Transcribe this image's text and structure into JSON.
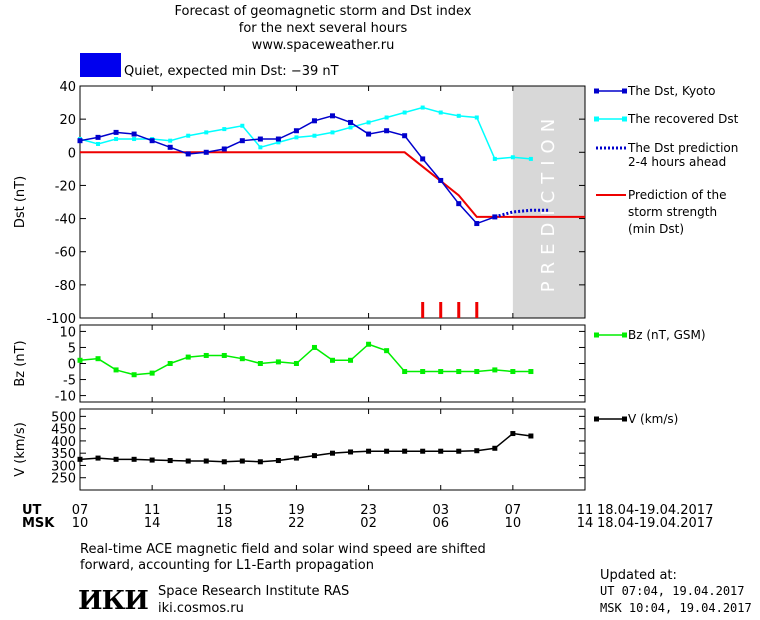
{
  "header": {
    "title_line1": "Forecast of geomagnetic storm and Dst index",
    "title_line2": "for the next several hours",
    "site": "www.spaceweather.ru",
    "status_color": "#0000ee",
    "status_text": "Quiet, expected min Dst: −39 nT"
  },
  "prediction_label": "PREDICTION",
  "time_axis": {
    "ut_label": "UT",
    "msk_label": "MSK",
    "ut_ticks": [
      "07",
      "11",
      "15",
      "19",
      "23",
      "03",
      "07",
      "11"
    ],
    "msk_ticks": [
      "10",
      "14",
      "18",
      "22",
      "02",
      "06",
      "10",
      "14"
    ],
    "date_range_ut": "18.04-19.04.2017",
    "date_range_msk": "18.04-19.04.2017"
  },
  "legend": {
    "dst_kyoto": "The Dst, Kyoto",
    "dst_recovered": "The recovered Dst",
    "dst_prediction_1": "The Dst prediction",
    "dst_prediction_2": "2-4 hours ahead",
    "storm_1": "Prediction of the",
    "storm_2": "storm strength",
    "storm_3": "(min Dst)",
    "bz": "Bz (nT, GSM)",
    "v": "V (km/s)"
  },
  "footer": {
    "note_line1": "Real-time ACE magnetic field and solar wind speed are shifted",
    "note_line2": "forward, accounting for L1-Earth propagation",
    "institute": "Space Research Institute RAS",
    "site": "iki.cosmos.ru",
    "logo_text": "ИКИ",
    "updated_label": "Updated at:",
    "updated_ut": "UT   07:04, 19.04.2017",
    "updated_msk": "MSK 10:04, 19.04.2017"
  },
  "chart_data": [
    {
      "type": "line",
      "ylabel": "Dst (nT)",
      "ylim": [
        -100,
        40
      ],
      "yticks": [
        40,
        20,
        0,
        -20,
        -40,
        -60,
        -80,
        -100
      ],
      "xlim_hours_from_07UT": [
        0,
        28
      ],
      "prediction_shade_from": 24,
      "colors": {
        "kyoto": "#0000cc",
        "recovered": "#00ffff",
        "prediction": "#0000cc",
        "storm": "#ee0000",
        "bars": "#ee0000"
      },
      "series": [
        {
          "name": "The Dst, Kyoto",
          "x": [
            0,
            1,
            2,
            3,
            4,
            5,
            6,
            7,
            8,
            9,
            10,
            11,
            12,
            13,
            14,
            15,
            16,
            17,
            18,
            19,
            20,
            21,
            22,
            23
          ],
          "y": [
            7,
            9,
            12,
            11,
            7,
            3,
            -1,
            0,
            2,
            7,
            8,
            8,
            13,
            19,
            22,
            18,
            11,
            13,
            10,
            -4,
            -17,
            -31,
            -43,
            -39
          ]
        },
        {
          "name": "The recovered Dst",
          "x": [
            0,
            1,
            2,
            3,
            4,
            5,
            6,
            7,
            8,
            9,
            10,
            11,
            12,
            13,
            14,
            15,
            16,
            17,
            18,
            19,
            20,
            21,
            22,
            23,
            24,
            25
          ],
          "y": [
            8,
            5,
            8,
            8,
            8,
            7,
            10,
            12,
            14,
            16,
            3,
            6,
            9,
            10,
            12,
            15,
            18,
            21,
            24,
            27,
            24,
            22,
            21,
            -4,
            -3,
            -4
          ]
        },
        {
          "name": "The Dst prediction 2-4 hours ahead",
          "x": [
            23,
            24,
            25,
            26
          ],
          "y": [
            -39,
            -36,
            -35,
            -35
          ]
        },
        {
          "name": "Prediction of the storm strength (min Dst)",
          "x": [
            0,
            18,
            21,
            22,
            28
          ],
          "y": [
            0,
            0,
            -26,
            -39,
            -39
          ]
        }
      ],
      "event_bars_x": [
        19,
        20,
        21,
        22
      ]
    },
    {
      "type": "line",
      "ylabel": "Bz (nT)",
      "ylim": [
        -12,
        12
      ],
      "yticks": [
        10,
        5,
        0,
        -5,
        -10
      ],
      "color": "#00ee00",
      "series": [
        {
          "name": "Bz (nT, GSM)",
          "x": [
            0,
            1,
            2,
            3,
            4,
            5,
            6,
            7,
            8,
            9,
            10,
            11,
            12,
            13,
            14,
            15,
            16,
            17,
            18,
            19,
            20,
            21,
            22,
            23,
            24,
            25
          ],
          "y": [
            1,
            1.5,
            -2,
            -3.5,
            -3,
            0,
            2,
            2.5,
            2.5,
            1.5,
            0,
            0.5,
            0,
            5,
            1,
            1,
            6,
            4,
            -2.5,
            -2.5,
            -2.5,
            -2.5,
            -2.5,
            -2,
            -2.5,
            -2.5
          ]
        }
      ]
    },
    {
      "type": "line",
      "ylabel": "V (km/s)",
      "ylim": [
        200,
        530
      ],
      "yticks": [
        500,
        450,
        400,
        350,
        300,
        250
      ],
      "color": "#000000",
      "series": [
        {
          "name": "V (km/s)",
          "x": [
            0,
            1,
            2,
            3,
            4,
            5,
            6,
            7,
            8,
            9,
            10,
            11,
            12,
            13,
            14,
            15,
            16,
            17,
            18,
            19,
            20,
            21,
            22,
            23,
            24,
            25
          ],
          "y": [
            325,
            330,
            325,
            325,
            322,
            320,
            318,
            318,
            315,
            318,
            315,
            320,
            330,
            340,
            350,
            355,
            358,
            358,
            358,
            358,
            358,
            358,
            360,
            370,
            430,
            420
          ]
        }
      ]
    }
  ]
}
